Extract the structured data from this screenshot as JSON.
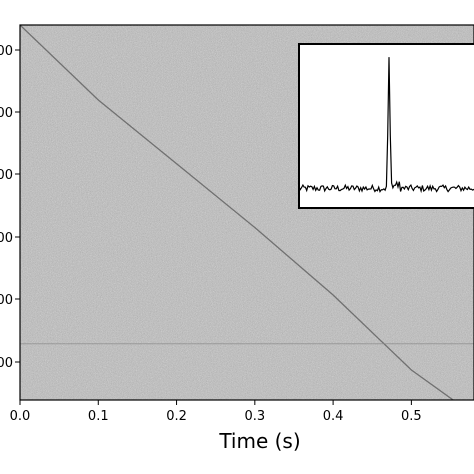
{
  "chart_data": {
    "type": "heatmap",
    "title": "",
    "xlabel": "Time (s)",
    "ylabel": "",
    "xlim": [
      0.0,
      0.58
    ],
    "x_ticks": [
      0.0,
      0.1,
      0.2,
      0.3,
      0.4,
      0.5
    ],
    "x_tick_labels": [
      "0.0",
      "0.1",
      "0.2",
      "0.3",
      "0.4",
      "0.5"
    ],
    "y_tick_labels": [
      "00",
      "00",
      "00",
      "00",
      "00",
      "00"
    ],
    "colormap": "grayscale noise",
    "dispersion_sweep": {
      "description_visible": "faint dark curved track",
      "points": [
        [
          0.0,
          1.0
        ],
        [
          0.1,
          0.8
        ],
        [
          0.2,
          0.63
        ],
        [
          0.3,
          0.46
        ],
        [
          0.4,
          0.28
        ],
        [
          0.5,
          0.08
        ],
        [
          0.58,
          -0.04
        ]
      ]
    },
    "horizontal_line_level": 0.15,
    "inset": {
      "type": "line",
      "xlim": [
        0,
        1
      ],
      "ylim": [
        0,
        1
      ],
      "peak_x": 0.5,
      "baseline": 0.12,
      "peak": 0.92
    },
    "grid": false,
    "legend": "none"
  },
  "colors": {
    "background": "#ffffff",
    "plot_noise_base": "#b8b8b8",
    "axis": "#000000",
    "track": "#555555"
  }
}
